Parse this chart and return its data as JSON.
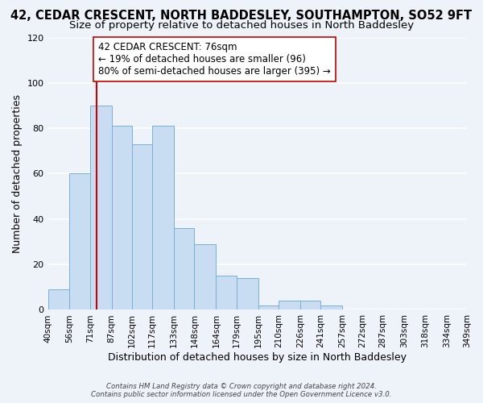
{
  "title": "42, CEDAR CRESCENT, NORTH BADDESLEY, SOUTHAMPTON, SO52 9FT",
  "subtitle": "Size of property relative to detached houses in North Baddesley",
  "xlabel": "Distribution of detached houses by size in North Baddesley",
  "ylabel": "Number of detached properties",
  "bar_edges": [
    40,
    56,
    71,
    87,
    102,
    117,
    133,
    148,
    164,
    179,
    195,
    210,
    226,
    241,
    257,
    272,
    287,
    303,
    318,
    334,
    349
  ],
  "bar_heights": [
    9,
    60,
    90,
    81,
    73,
    81,
    36,
    29,
    15,
    14,
    2,
    4,
    4,
    2,
    0,
    0,
    0,
    0,
    0,
    0
  ],
  "bar_color": "#c9ddf2",
  "bar_edgecolor": "#7bafd4",
  "vline_x": 76,
  "vline_color": "#cc0000",
  "ylim": [
    0,
    120
  ],
  "annotation_text": "42 CEDAR CRESCENT: 76sqm\n← 19% of detached houses are smaller (96)\n80% of semi-detached houses are larger (395) →",
  "annotation_box_edgecolor": "#cc0000",
  "annotation_box_facecolor": "#ffffff",
  "footnote1": "Contains HM Land Registry data © Crown copyright and database right 2024.",
  "footnote2": "Contains public sector information licensed under the Open Government Licence v3.0.",
  "tick_labels": [
    "40sqm",
    "56sqm",
    "71sqm",
    "87sqm",
    "102sqm",
    "117sqm",
    "133sqm",
    "148sqm",
    "164sqm",
    "179sqm",
    "195sqm",
    "210sqm",
    "226sqm",
    "241sqm",
    "257sqm",
    "272sqm",
    "287sqm",
    "303sqm",
    "318sqm",
    "334sqm",
    "349sqm"
  ],
  "background_color": "#eef2f9",
  "plot_bg_color": "#eef2f9",
  "grid_color": "#ffffff",
  "title_fontsize": 10.5,
  "subtitle_fontsize": 9.5,
  "label_fontsize": 9,
  "tick_fontsize": 7.5,
  "annotation_fontsize": 8.5
}
